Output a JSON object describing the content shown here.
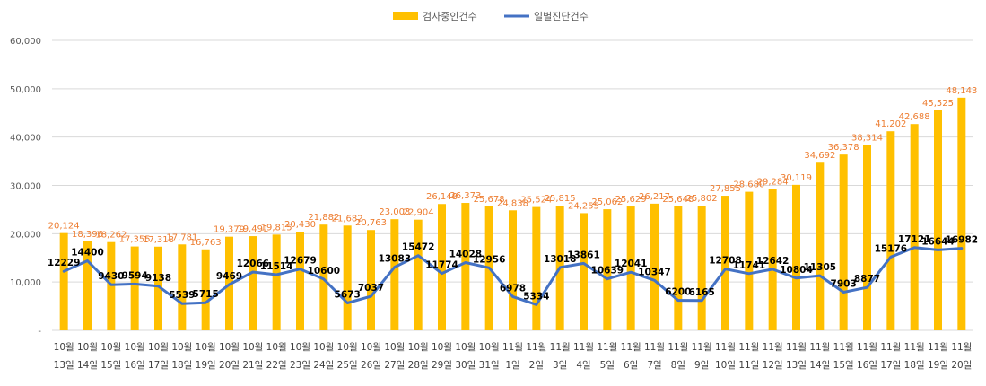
{
  "chart_data": {
    "type": "bar",
    "title": "",
    "xlabel": "",
    "ylabel": "",
    "ylim": [
      0,
      60000
    ],
    "y_ticks": [
      "-",
      "10,000",
      "20,000",
      "30,000",
      "40,000",
      "50,000",
      "60,000"
    ],
    "grid": true,
    "legend_position": "top",
    "categories": [
      [
        "10월",
        "13일"
      ],
      [
        "10월",
        "14일"
      ],
      [
        "10월",
        "15일"
      ],
      [
        "10월",
        "16일"
      ],
      [
        "10월",
        "17일"
      ],
      [
        "10월",
        "18일"
      ],
      [
        "10월",
        "19일"
      ],
      [
        "10월",
        "20일"
      ],
      [
        "10월",
        "21일"
      ],
      [
        "10월",
        "22일"
      ],
      [
        "10월",
        "23일"
      ],
      [
        "10월",
        "24일"
      ],
      [
        "10월",
        "25일"
      ],
      [
        "10월",
        "26일"
      ],
      [
        "10월",
        "27일"
      ],
      [
        "10월",
        "28일"
      ],
      [
        "10월",
        "29일"
      ],
      [
        "10월",
        "30일"
      ],
      [
        "10월",
        "31일"
      ],
      [
        "11월",
        "1일"
      ],
      [
        "11월",
        "2일"
      ],
      [
        "11월",
        "3일"
      ],
      [
        "11월",
        "4일"
      ],
      [
        "11월",
        "5일"
      ],
      [
        "11월",
        "6일"
      ],
      [
        "11월",
        "7일"
      ],
      [
        "11월",
        "8일"
      ],
      [
        "11월",
        "9일"
      ],
      [
        "11월",
        "10일"
      ],
      [
        "11월",
        "11일"
      ],
      [
        "11월",
        "12일"
      ],
      [
        "11월",
        "13일"
      ],
      [
        "11월",
        "14일"
      ],
      [
        "11월",
        "15일"
      ],
      [
        "11월",
        "16일"
      ],
      [
        "11월",
        "17일"
      ],
      [
        "11월",
        "18일"
      ],
      [
        "11월",
        "19일"
      ],
      [
        "11월",
        "20일"
      ]
    ],
    "series": [
      {
        "name": "검사중인건수",
        "type": "bar",
        "color": "#FFC000",
        "label_color": "#ED7D31",
        "values": [
          20124,
          18396,
          18262,
          17355,
          17318,
          17781,
          16763,
          19379,
          19491,
          19815,
          20430,
          21882,
          21682,
          20763,
          23003,
          22904,
          26148,
          26373,
          25678,
          24838,
          25524,
          25815,
          24255,
          25062,
          25629,
          26217,
          25648,
          25802,
          27855,
          28680,
          29284,
          30119,
          34692,
          36378,
          38314,
          41202,
          42688,
          45525,
          48143
        ],
        "labels": [
          "20,124",
          "18,396",
          "18,262",
          "17,355",
          "17,318",
          "17,781",
          "16,763",
          "19,379",
          "19,491",
          "19,815",
          "20,430",
          "21,882",
          "21,682",
          "20,763",
          "23,003",
          "22,904",
          "26,148",
          "26,373",
          "25,678",
          "24,838",
          "25,524",
          "25,815",
          "24,255",
          "25,062",
          "25,629",
          "26,217",
          "25,648",
          "25,802",
          "27,855",
          "28,680",
          "29,284",
          "30,119",
          "34,692",
          "36,378",
          "38,314",
          "41,202",
          "42,688",
          "45,525",
          "48,143"
        ]
      },
      {
        "name": "일별진단건수",
        "type": "line",
        "color": "#4472C4",
        "label_color": "#000000",
        "values": [
          12229,
          14400,
          9430,
          9594,
          9138,
          5539,
          5715,
          9469,
          12066,
          11514,
          12679,
          10600,
          5673,
          7037,
          13083,
          15472,
          11774,
          14028,
          12956,
          6978,
          5334,
          13018,
          13861,
          10639,
          12041,
          10347,
          6200,
          6165,
          12708,
          11741,
          12642,
          10804,
          11305,
          7903,
          8877,
          15176,
          17121,
          16644,
          16982
        ],
        "labels": [
          "12229",
          "14400",
          "9430",
          "9594",
          "9138",
          "5539",
          "5715",
          "9469",
          "12066",
          "11514",
          "12679",
          "10600",
          "5673",
          "7037",
          "13083",
          "15472",
          "11774",
          "14028",
          "12956",
          "6978",
          "5334",
          "13018",
          "13861",
          "10639",
          "12041",
          "10347",
          "6200",
          "6165",
          "12708",
          "11741",
          "12642",
          "10804",
          "11305",
          "7903",
          "8877",
          "15176",
          "17121",
          "16644",
          "16982"
        ]
      }
    ]
  }
}
